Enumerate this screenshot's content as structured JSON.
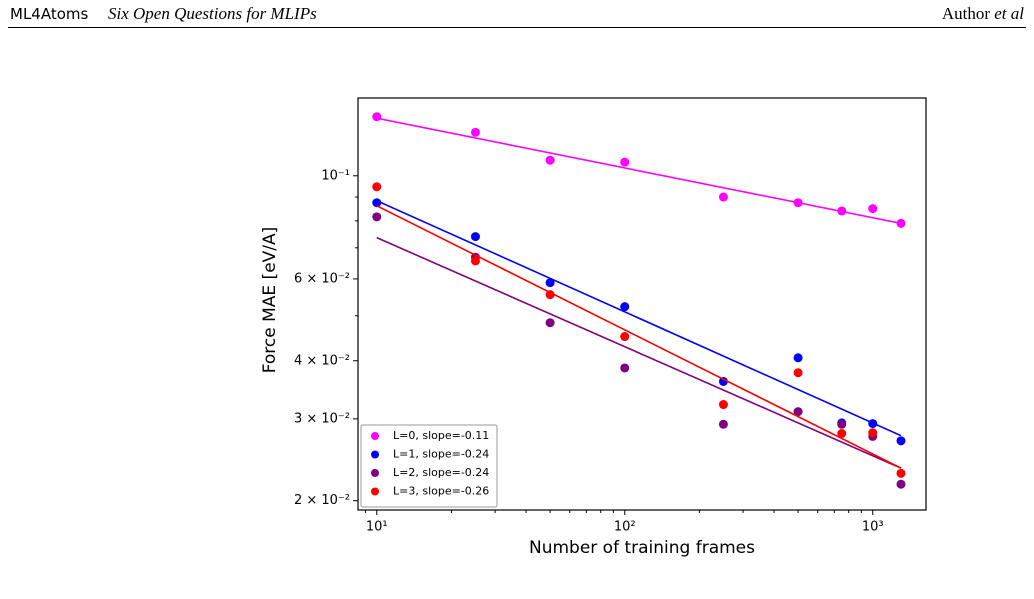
{
  "header": {
    "left": "ML4Atoms",
    "title": "Six Open Questions for MLIPs",
    "author": "Author",
    "etal": "et al"
  },
  "chart_data": {
    "type": "scatter",
    "xlabel": "Number of training frames",
    "ylabel": "Force MAE [eV/A]",
    "log_x": true,
    "log_y": true,
    "legend": "lower left",
    "x": [
      10,
      25,
      50,
      100,
      250,
      500,
      750,
      1000,
      1300
    ],
    "fit_x": [
      10,
      1300
    ],
    "series": [
      {
        "name": "L=0, slope=-0.11",
        "color": "#ff00ff",
        "values": [
          0.134,
          0.124,
          0.108,
          0.107,
          0.09,
          0.0875,
          0.084,
          0.085,
          0.079
        ],
        "fit": [
          0.133,
          0.079
        ]
      },
      {
        "name": "L=1, slope=-0.24",
        "color": "#0000ff",
        "values": [
          0.0875,
          0.074,
          0.0589,
          0.0523,
          0.0361,
          0.0406,
          0.0294,
          0.0293,
          0.0269
        ],
        "fit": [
          0.0884,
          0.0276
        ]
      },
      {
        "name": "L=2, slope=-0.24",
        "color": "#800080",
        "values": [
          0.0816,
          0.0668,
          0.0483,
          0.0386,
          0.0292,
          0.0311,
          0.0292,
          0.0275,
          0.0217
        ],
        "fit": [
          0.0736,
          0.0235
        ]
      },
      {
        "name": "L=3, slope=-0.26",
        "color": "#ff0000",
        "values": [
          0.0947,
          0.0656,
          0.0555,
          0.0451,
          0.0322,
          0.0377,
          0.0279,
          0.028,
          0.0229
        ],
        "fit": [
          0.0862,
          0.0235
        ]
      }
    ],
    "xlim": [
      8.4,
      1640
    ],
    "ylim": [
      0.0191,
      0.147
    ],
    "xticks": [
      {
        "value": 10,
        "label": "10¹"
      },
      {
        "value": 100,
        "label": "10²"
      },
      {
        "value": 1000,
        "label": "10³"
      }
    ],
    "xminorticks": [
      9,
      20,
      30,
      40,
      50,
      60,
      70,
      80,
      90,
      200,
      300,
      400,
      500,
      600,
      700,
      800,
      900
    ],
    "yticks": [
      {
        "value": 0.02,
        "label": "2 × 10⁻²"
      },
      {
        "value": 0.03,
        "label": "3 × 10⁻²"
      },
      {
        "value": 0.04,
        "label": "4 × 10⁻²"
      },
      {
        "value": 0.06,
        "label": "6 × 10⁻²"
      },
      {
        "value": 0.1,
        "label": "10⁻¹"
      }
    ],
    "yminorticks": [
      0.05,
      0.07,
      0.08,
      0.09
    ]
  }
}
